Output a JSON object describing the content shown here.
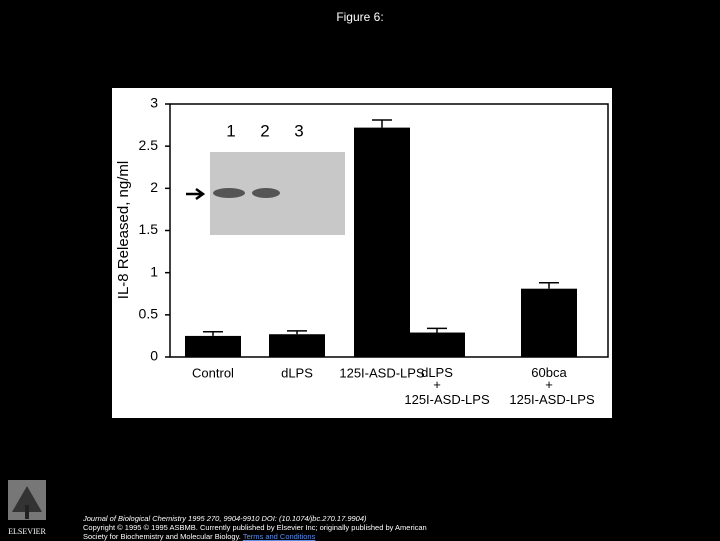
{
  "header": {
    "title": "Figure 6:"
  },
  "chart_data": {
    "type": "bar",
    "y_label": "IL-8 Released, ng/ml",
    "categories": [
      "Control",
      "dLPS",
      "125I-ASD-LPS",
      "dLPS + 125I-ASD-LPS",
      "60bca + 125I-ASD-LPS"
    ],
    "values": [
      0.25,
      0.27,
      2.72,
      0.29,
      0.81
    ],
    "errors": [
      0.05,
      0.04,
      0.09,
      0.05,
      0.07
    ],
    "color": "#000000",
    "ylim": [
      0,
      3
    ],
    "yticks": [
      0,
      0.5,
      1,
      1.5,
      2,
      2.5,
      3
    ],
    "inset_labels": [
      "1",
      "2",
      "3"
    ]
  },
  "footer": {
    "logo": "ELSEVIER",
    "citation": "Journal of Biological Chemistry 1995 270, 9904-9910 DOI: (10.1074/jbc.270.17.9904)",
    "copyright": "Copyright © 1995 © 1995 ASBMB. Currently published by Elsevier Inc; originally published by American",
    "society": "Society for Biochemistry and Molecular Biology.",
    "link": "Terms and Conditions"
  }
}
